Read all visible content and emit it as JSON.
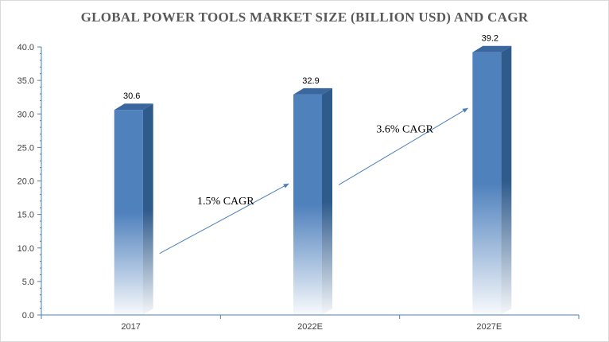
{
  "chart_data": {
    "type": "bar",
    "title": "GLOBAL POWER TOOLS MARKET SIZE (BILLION USD) AND CAGR",
    "categories": [
      "2017",
      "2022E",
      "2027E"
    ],
    "values": [
      30.6,
      32.9,
      39.2
    ],
    "data_labels": [
      "30.6",
      "32.9",
      "39.2"
    ],
    "xlabel": "",
    "ylabel": "",
    "ylim": [
      0,
      40
    ],
    "y_ticks": [
      "0.0",
      "5.0",
      "10.0",
      "15.0",
      "20.0",
      "25.0",
      "30.0",
      "35.0",
      "40.0"
    ],
    "grid": false,
    "legend": "none",
    "bar_style": "3d-gradient",
    "colors": {
      "bar_front": "#4f81bd",
      "bar_side": "#2e5a8c",
      "bar_top": "#3a679e",
      "arrow": "#4a7ebb"
    },
    "annotations": [
      {
        "text": "1.5% CAGR",
        "from": "2017",
        "to": "2022E"
      },
      {
        "text": "3.6% CAGR",
        "from": "2022E",
        "to": "2027E"
      }
    ]
  }
}
